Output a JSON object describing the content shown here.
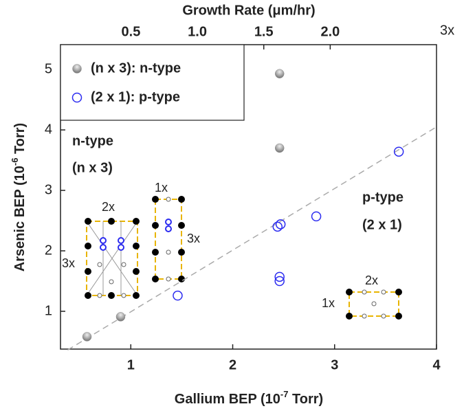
{
  "chart_data": {
    "type": "scatter",
    "xlabel": [
      "Gallium BEP (10",
      "-7",
      " Torr)"
    ],
    "ylabel": [
      "Arsenic BEP (10",
      "-6",
      " Torr)"
    ],
    "x2label": "Growth Rate (μm/hr)",
    "xlim": [
      0.31,
      4.0
    ],
    "xticks": [
      1,
      2,
      3,
      4
    ],
    "ylim": [
      0.375,
      5.41
    ],
    "yticks": [
      1,
      2,
      3,
      4,
      5
    ],
    "x2lim": [
      -0.03,
      2.8
    ],
    "x2ticks": [
      0.5,
      {
        "value": 1.0,
        "label": "1.0"
      },
      1.5,
      {
        "value": 2.0,
        "label": "2.0"
      }
    ],
    "legend": "top-left",
    "series": [
      {
        "name": "(n x 3): n-type",
        "color": "#8c8c8c",
        "marker": "filled",
        "x": [
          0.57,
          0.9,
          2.46,
          2.46
        ],
        "values": [
          0.58,
          0.91,
          3.7,
          4.93
        ]
      },
      {
        "name": "(2 x 1): p-type",
        "color": "#2b2bf0",
        "marker": "open",
        "x": [
          1.46,
          2.46,
          2.46,
          2.44,
          2.47,
          2.82,
          3.63
        ],
        "values": [
          1.26,
          1.5,
          1.57,
          2.4,
          2.44,
          2.57,
          3.64
        ]
      }
    ],
    "trend_line": {
      "color": "#aaaaaa",
      "x": [
        0.38,
        4.0
      ],
      "values": [
        0.36,
        4.05
      ]
    },
    "annotations": [
      "n-type",
      "(n x 3)",
      "p-type",
      "(2 x 1)",
      "2x",
      "3x",
      "1x",
      "3x",
      "2x",
      "1x",
      "3x"
    ]
  }
}
